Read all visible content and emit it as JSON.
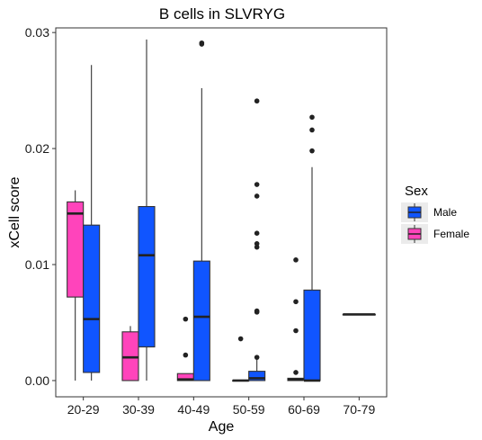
{
  "chart_data": {
    "type": "boxplot",
    "title": "B cells in SLVRYG",
    "xlabel": "Age",
    "ylabel": "xCell score",
    "ylim": [
      -0.0014,
      0.0304
    ],
    "yticks": [
      0.0,
      0.01,
      0.02,
      0.03
    ],
    "ytick_labels": [
      "0.00",
      "0.01",
      "0.02",
      "0.03"
    ],
    "categories": [
      "20-29",
      "30-39",
      "40-49",
      "50-59",
      "60-69",
      "70-79"
    ],
    "grid": false,
    "legend_position": "right",
    "legend": {
      "title": "Sex",
      "entries": [
        {
          "key": "Male",
          "label": "Male",
          "color": "#1055FF"
        },
        {
          "key": "Female",
          "label": "Female",
          "color": "#FF44BB"
        }
      ]
    },
    "series": [
      {
        "name": "Female",
        "color": "#FF44BB",
        "boxes": [
          {
            "category": "20-29",
            "whisker_low": 0.0,
            "q1": 0.0072,
            "median": 0.0144,
            "q3": 0.0154,
            "whisker_high": 0.0164,
            "outliers": []
          },
          {
            "category": "30-39",
            "whisker_low": 0.0,
            "q1": 0.0,
            "median": 0.002,
            "q3": 0.0042,
            "whisker_high": 0.0047,
            "outliers": []
          },
          {
            "category": "40-49",
            "whisker_low": 0.0,
            "q1": 0.0,
            "median": 0.0001,
            "q3": 0.0006,
            "whisker_high": 0.0006,
            "outliers": [
              0.0022,
              0.0053
            ]
          },
          {
            "category": "50-59",
            "whisker_low": 0.0,
            "q1": 0.0,
            "median": 0.0,
            "q3": 0.0,
            "whisker_high": 0.0,
            "outliers": [
              0.0036
            ]
          },
          {
            "category": "60-69",
            "whisker_low": 0.0,
            "q1": 0.0,
            "median": 0.0001,
            "q3": 0.0002,
            "whisker_high": 0.0002,
            "outliers": [
              0.0007,
              0.0043,
              0.0068,
              0.0104
            ]
          }
        ]
      },
      {
        "name": "Male",
        "color": "#1055FF",
        "boxes": [
          {
            "category": "20-29",
            "whisker_low": 0.0,
            "q1": 0.0007,
            "median": 0.0053,
            "q3": 0.0134,
            "whisker_high": 0.0272,
            "outliers": []
          },
          {
            "category": "30-39",
            "whisker_low": 0.0,
            "q1": 0.0029,
            "median": 0.0108,
            "q3": 0.015,
            "whisker_high": 0.0294,
            "outliers": []
          },
          {
            "category": "40-49",
            "whisker_low": 0.0,
            "q1": 0.0,
            "median": 0.0055,
            "q3": 0.0103,
            "whisker_high": 0.0252,
            "outliers": [
              0.029,
              0.0291
            ]
          },
          {
            "category": "50-59",
            "whisker_low": 0.0,
            "q1": 0.0,
            "median": 0.0002,
            "q3": 0.0008,
            "whisker_high": 0.0018,
            "outliers": [
              0.002,
              0.0059,
              0.006,
              0.0115,
              0.0118,
              0.0127,
              0.0159,
              0.0169,
              0.0241
            ]
          },
          {
            "category": "60-69",
            "whisker_low": 0.0,
            "q1": 0.0,
            "median": 0.0,
            "q3": 0.0078,
            "whisker_high": 0.0184,
            "outliers": [
              0.0198,
              0.0216,
              0.0227
            ]
          },
          {
            "category": "70-79",
            "whisker_low": 0.0057,
            "q1": 0.0057,
            "median": 0.0057,
            "q3": 0.0057,
            "whisker_high": 0.0057,
            "outliers": []
          }
        ]
      }
    ]
  }
}
